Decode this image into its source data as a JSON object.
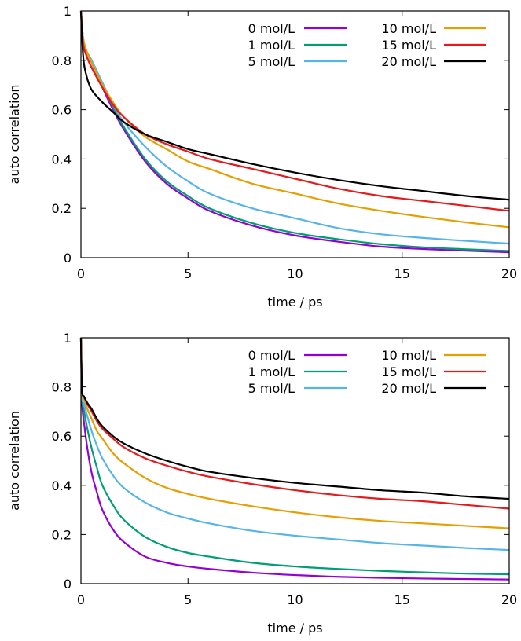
{
  "chart_data": [
    {
      "type": "line",
      "xlabel": "time / ps",
      "ylabel": "auto correlation",
      "xlim": [
        0,
        20
      ],
      "ylim": [
        0,
        1
      ],
      "xticks": [
        "0",
        "5",
        "10",
        "15",
        "20"
      ],
      "yticks": [
        "0",
        "0.2",
        "0.4",
        "0.6",
        "0.8",
        "1"
      ],
      "legend": "top-right",
      "grid": false,
      "x": [
        0,
        0.1,
        0.25,
        0.5,
        1,
        1.5,
        2,
        3,
        4,
        5,
        6,
        8,
        10,
        12,
        14,
        16,
        18,
        20
      ],
      "series": [
        {
          "name": "0 mol/L",
          "color": "#9400d3",
          "values": [
            1.0,
            0.89,
            0.84,
            0.79,
            0.69,
            0.6,
            0.52,
            0.39,
            0.3,
            0.24,
            0.19,
            0.13,
            0.09,
            0.065,
            0.045,
            0.035,
            0.028,
            0.022
          ]
        },
        {
          "name": "1 mol/L",
          "color": "#009e73",
          "values": [
            1.0,
            0.89,
            0.84,
            0.79,
            0.7,
            0.61,
            0.53,
            0.4,
            0.31,
            0.25,
            0.2,
            0.14,
            0.1,
            0.075,
            0.055,
            0.042,
            0.034,
            0.027
          ]
        },
        {
          "name": "5 mol/L",
          "color": "#56b4e9",
          "values": [
            1.0,
            0.89,
            0.84,
            0.8,
            0.71,
            0.62,
            0.55,
            0.45,
            0.37,
            0.31,
            0.26,
            0.2,
            0.16,
            0.12,
            0.095,
            0.08,
            0.068,
            0.057
          ]
        },
        {
          "name": "10 mol/L",
          "color": "#e69f00",
          "values": [
            1.0,
            0.89,
            0.84,
            0.79,
            0.7,
            0.63,
            0.57,
            0.49,
            0.44,
            0.39,
            0.36,
            0.3,
            0.26,
            0.22,
            0.19,
            0.165,
            0.143,
            0.123
          ]
        },
        {
          "name": "15 mol/L",
          "color": "#e41a1c",
          "values": [
            1.0,
            0.87,
            0.82,
            0.77,
            0.69,
            0.62,
            0.57,
            0.5,
            0.46,
            0.43,
            0.4,
            0.36,
            0.32,
            0.28,
            0.25,
            0.23,
            0.21,
            0.19
          ]
        },
        {
          "name": "20 mol/L",
          "color": "#000000",
          "values": [
            1.0,
            0.82,
            0.74,
            0.68,
            0.63,
            0.59,
            0.55,
            0.5,
            0.47,
            0.44,
            0.42,
            0.38,
            0.345,
            0.315,
            0.29,
            0.27,
            0.25,
            0.235
          ]
        }
      ]
    },
    {
      "type": "line",
      "xlabel": "time / ps",
      "ylabel": "auto correlation",
      "xlim": [
        0,
        20
      ],
      "ylim": [
        0,
        1
      ],
      "xticks": [
        "0",
        "5",
        "10",
        "15",
        "20"
      ],
      "yticks": [
        "0",
        "0.2",
        "0.4",
        "0.6",
        "0.8",
        "1"
      ],
      "legend": "top-right",
      "grid": false,
      "x": [
        0,
        0.05,
        0.15,
        0.3,
        0.5,
        0.75,
        1,
        1.5,
        2,
        3,
        4,
        5,
        6,
        8,
        10,
        12,
        14,
        16,
        18,
        20
      ],
      "series": [
        {
          "name": "0 mol/L",
          "color": "#9400d3",
          "values": [
            1.0,
            0.74,
            0.65,
            0.55,
            0.45,
            0.37,
            0.3,
            0.22,
            0.17,
            0.11,
            0.085,
            0.07,
            0.06,
            0.045,
            0.035,
            0.028,
            0.024,
            0.021,
            0.019,
            0.017
          ]
        },
        {
          "name": "1 mol/L",
          "color": "#009e73",
          "values": [
            1.0,
            0.76,
            0.7,
            0.63,
            0.55,
            0.47,
            0.4,
            0.32,
            0.26,
            0.19,
            0.15,
            0.125,
            0.11,
            0.085,
            0.07,
            0.06,
            0.052,
            0.046,
            0.041,
            0.038
          ]
        },
        {
          "name": "5 mol/L",
          "color": "#56b4e9",
          "values": [
            1.0,
            0.77,
            0.73,
            0.68,
            0.62,
            0.56,
            0.51,
            0.44,
            0.39,
            0.33,
            0.29,
            0.265,
            0.245,
            0.215,
            0.195,
            0.18,
            0.165,
            0.155,
            0.145,
            0.137
          ]
        },
        {
          "name": "10 mol/L",
          "color": "#e69f00",
          "values": [
            1.0,
            0.78,
            0.75,
            0.71,
            0.67,
            0.62,
            0.59,
            0.53,
            0.49,
            0.43,
            0.39,
            0.365,
            0.345,
            0.315,
            0.29,
            0.27,
            0.255,
            0.245,
            0.235,
            0.225
          ]
        },
        {
          "name": "15 mol/L",
          "color": "#e41a1c",
          "values": [
            1.0,
            0.79,
            0.76,
            0.73,
            0.7,
            0.66,
            0.63,
            0.59,
            0.555,
            0.51,
            0.48,
            0.455,
            0.435,
            0.405,
            0.38,
            0.36,
            0.345,
            0.335,
            0.32,
            0.305
          ]
        },
        {
          "name": "20 mol/L",
          "color": "#000000",
          "values": [
            1.0,
            0.79,
            0.76,
            0.735,
            0.71,
            0.67,
            0.64,
            0.6,
            0.57,
            0.53,
            0.5,
            0.475,
            0.455,
            0.43,
            0.41,
            0.395,
            0.38,
            0.37,
            0.355,
            0.345
          ]
        }
      ]
    }
  ]
}
